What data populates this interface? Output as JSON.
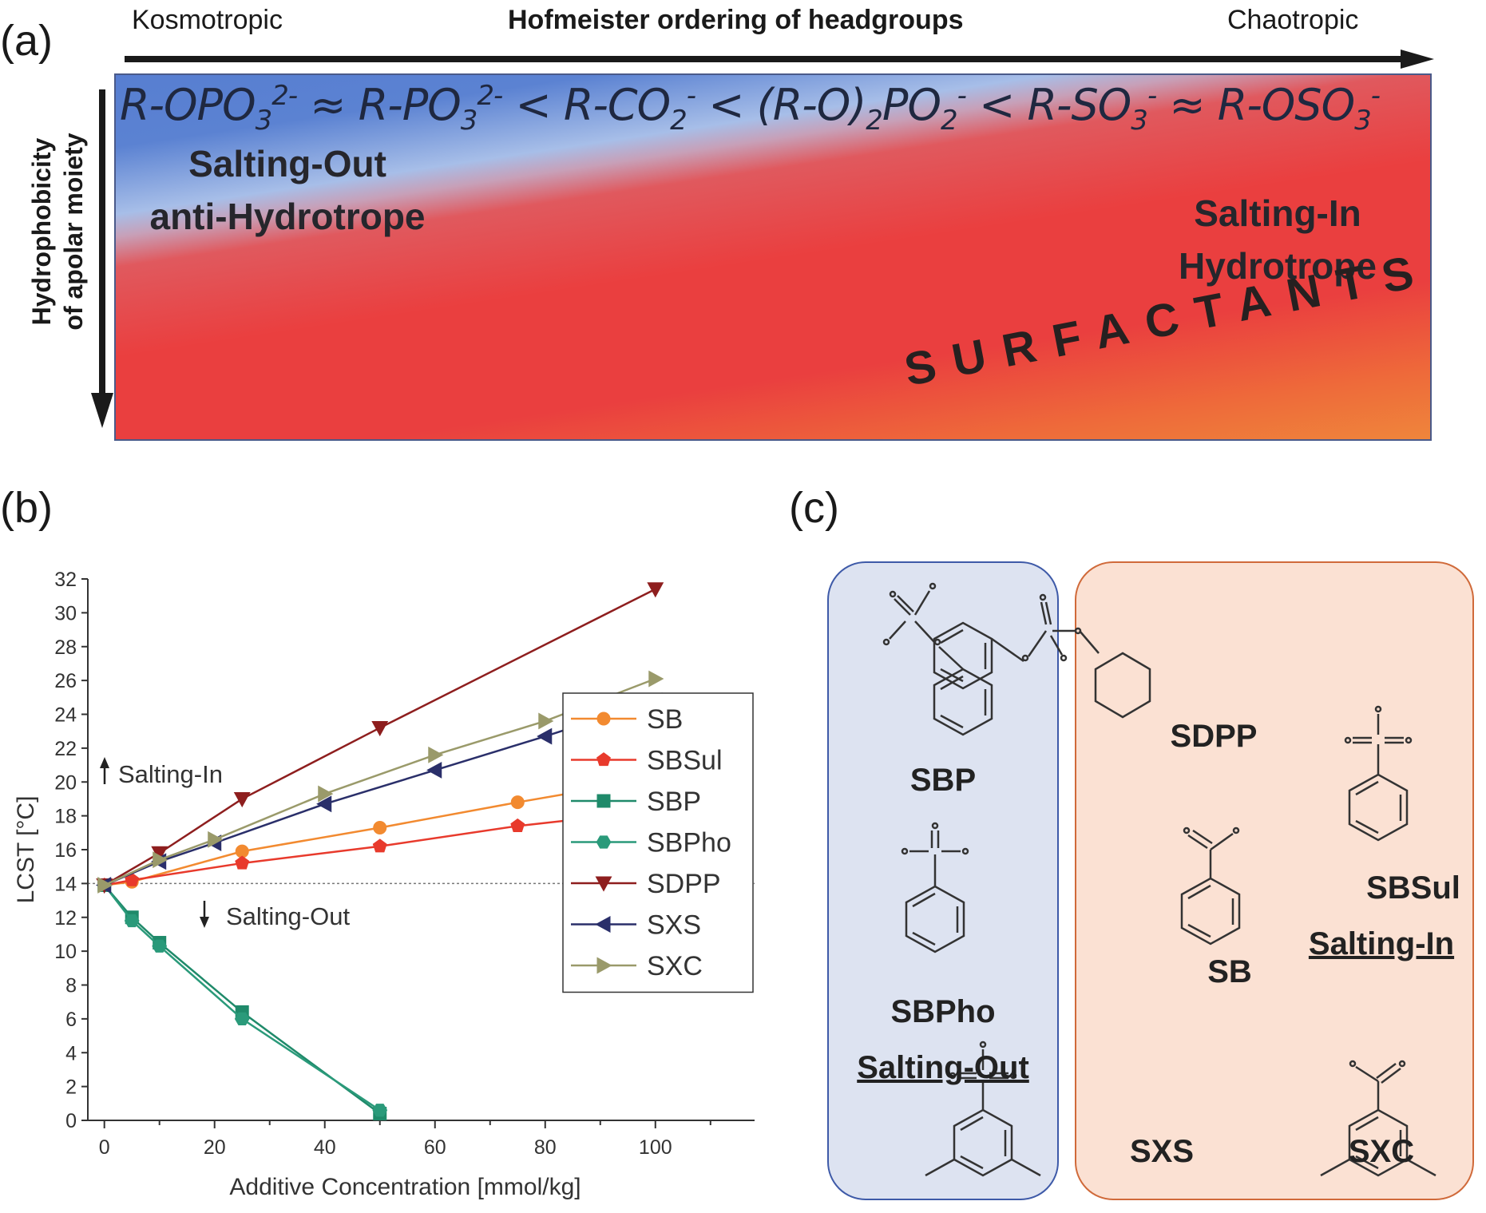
{
  "panel_labels": {
    "a": "(a)",
    "b": "(b)",
    "c": "(c)"
  },
  "hofmeister": {
    "left_label": "Kosmotropic",
    "title": "Hofmeister ordering of headgroups",
    "right_label": "Chaotropic",
    "axis_label_line1": "Hydrophobicity",
    "axis_label_line2": "of apolar moiety",
    "salting_out_line1": "Salting-Out",
    "salting_out_line2": "anti-Hydrotrope",
    "salting_in_line1": "Salting-In",
    "salting_in_line2": "Hydrotrope",
    "surfactants": "SURFACTANTS",
    "formula": {
      "t1": "R-OPO",
      "s1": "3",
      "p1": "2-",
      "approx1": " ≈ ",
      "t2": "R-PO",
      "s2": "3",
      "p2": "2-",
      "lt1": " < ",
      "t3": "R-CO",
      "s3": "2",
      "p3": "-",
      "lt2": " < ",
      "t4": "(R-O)",
      "s4a": "2",
      "t4b": "PO",
      "s4b": "2",
      "p4": "-",
      "lt3": " < ",
      "t5": "R-SO",
      "s5": "3",
      "p5": "-",
      "approx2": " ≈ ",
      "t6": "R-OSO",
      "s6": "3",
      "p6": "-"
    },
    "colors": {
      "blue": "#3f66c8",
      "red": "#ea3f3f",
      "orange": "#f09a3c"
    }
  },
  "chart_data": {
    "type": "line",
    "xlabel": "Additive Concentration [mmol/kg]",
    "ylabel": "LCST [°C]",
    "xlim": [
      -3,
      118
    ],
    "ylim": [
      0,
      32
    ],
    "xticks": [
      0,
      20,
      40,
      60,
      80,
      100
    ],
    "yticks": [
      0,
      2,
      4,
      6,
      8,
      10,
      12,
      14,
      16,
      18,
      20,
      22,
      24,
      26,
      28,
      30,
      32
    ],
    "reference_line": 14,
    "annotations": [
      {
        "text": "Salting-In",
        "arrow": "up"
      },
      {
        "text": "Salting-Out",
        "arrow": "down"
      }
    ],
    "legend_position": "bottom-right",
    "series": [
      {
        "name": "SB",
        "color": "#f28a30",
        "marker": "circle",
        "x": [
          0,
          5,
          25,
          50,
          75,
          100
        ],
        "y": [
          13.9,
          14.1,
          15.9,
          17.3,
          18.8,
          20.2
        ]
      },
      {
        "name": "SBSul",
        "color": "#e83a2c",
        "marker": "pentagon",
        "x": [
          0,
          5,
          25,
          50,
          75,
          100
        ],
        "y": [
          13.9,
          14.2,
          15.2,
          16.2,
          17.4,
          18.3
        ]
      },
      {
        "name": "SBP",
        "color": "#1f8a6a",
        "marker": "square",
        "x": [
          0,
          5,
          10,
          25,
          50
        ],
        "y": [
          13.9,
          12.0,
          10.5,
          6.4,
          0.4
        ]
      },
      {
        "name": "SBPho",
        "color": "#2a9a7a",
        "marker": "hexagon",
        "x": [
          0,
          5,
          10,
          25,
          50
        ],
        "y": [
          13.9,
          11.8,
          10.3,
          6.0,
          0.6
        ]
      },
      {
        "name": "SDPP",
        "color": "#8e1e1e",
        "marker": "triangle-down",
        "x": [
          0,
          10,
          25,
          50,
          100
        ],
        "y": [
          13.9,
          15.8,
          19.0,
          23.2,
          31.4
        ]
      },
      {
        "name": "SXS",
        "color": "#2a2f6a",
        "marker": "triangle-left",
        "x": [
          0,
          10,
          20,
          40,
          60,
          80,
          100
        ],
        "y": [
          13.9,
          15.3,
          16.4,
          18.7,
          20.7,
          22.7,
          24.8
        ]
      },
      {
        "name": "SXC",
        "color": "#9a9a6a",
        "marker": "triangle-right",
        "x": [
          0,
          10,
          20,
          40,
          60,
          80,
          100
        ],
        "y": [
          13.9,
          15.4,
          16.6,
          19.3,
          21.6,
          23.6,
          26.1
        ]
      }
    ]
  },
  "panel_c": {
    "salting_out_group": {
      "label": "Salting-Out",
      "molecules": [
        "SBP",
        "SBPho"
      ]
    },
    "salting_in_group": {
      "label": "Salting-In",
      "molecules": [
        "SDPP",
        "SBSul",
        "SB",
        "SXS",
        "SXC"
      ]
    },
    "colors": {
      "out_fill": "#dde3f1",
      "out_border": "#3e5aa8",
      "in_fill": "#fbe1d3",
      "in_border": "#d06a3a"
    }
  }
}
